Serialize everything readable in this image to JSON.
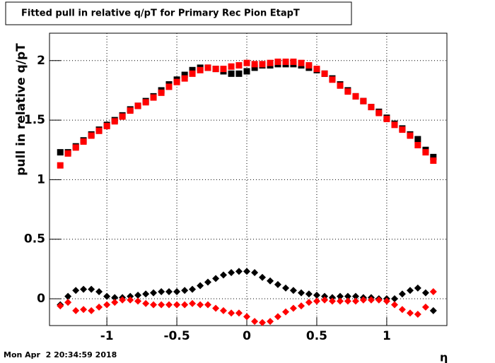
{
  "chart_data": {
    "type": "scatter",
    "title": "Fitted pull in relative q/pT for Primary Rec Pion EtapT",
    "y_label": "pull in relative q/pT",
    "x_label": "η",
    "timestamp": "Mon Apr  2 20:34:59 2018",
    "x": [
      -1.333,
      -1.278,
      -1.222,
      -1.167,
      -1.111,
      -1.056,
      -1,
      -0.944,
      -0.889,
      -0.833,
      -0.778,
      -0.722,
      -0.667,
      -0.611,
      -0.556,
      -0.5,
      -0.444,
      -0.389,
      -0.333,
      -0.278,
      -0.222,
      -0.167,
      -0.111,
      -0.056,
      0,
      0.056,
      0.111,
      0.167,
      0.222,
      0.278,
      0.333,
      0.389,
      0.444,
      0.5,
      0.556,
      0.611,
      0.667,
      0.722,
      0.778,
      0.833,
      0.889,
      0.944,
      1,
      1.056,
      1.111,
      1.167,
      1.222,
      1.278,
      1.333
    ],
    "series": [
      {
        "color": "#000000",
        "marker": "square",
        "values": [
          1.23,
          1.23,
          1.28,
          1.33,
          1.38,
          1.42,
          1.46,
          1.5,
          1.54,
          1.59,
          1.62,
          1.66,
          1.7,
          1.75,
          1.8,
          1.84,
          1.88,
          1.92,
          1.94,
          1.94,
          1.93,
          1.91,
          1.89,
          1.89,
          1.91,
          1.94,
          1.96,
          1.96,
          1.97,
          1.97,
          1.97,
          1.96,
          1.94,
          1.92,
          1.89,
          1.85,
          1.8,
          1.75,
          1.7,
          1.66,
          1.61,
          1.57,
          1.52,
          1.47,
          1.43,
          1.38,
          1.34,
          1.25,
          1.19
        ]
      },
      {
        "color": "#ff0000",
        "marker": "square",
        "values": [
          1.12,
          1.22,
          1.27,
          1.32,
          1.37,
          1.41,
          1.45,
          1.49,
          1.53,
          1.58,
          1.62,
          1.65,
          1.69,
          1.73,
          1.78,
          1.82,
          1.85,
          1.89,
          1.92,
          1.94,
          1.93,
          1.93,
          1.95,
          1.96,
          1.98,
          1.97,
          1.97,
          1.98,
          1.99,
          1.99,
          1.99,
          1.98,
          1.96,
          1.93,
          1.89,
          1.84,
          1.79,
          1.74,
          1.7,
          1.66,
          1.61,
          1.56,
          1.51,
          1.46,
          1.42,
          1.37,
          1.29,
          1.23,
          1.16
        ]
      },
      {
        "color": "#000000",
        "marker": "diamond",
        "values": [
          -0.05,
          0.02,
          0.07,
          0.08,
          0.08,
          0.06,
          0.02,
          0.01,
          0.01,
          0.02,
          0.03,
          0.04,
          0.05,
          0.06,
          0.06,
          0.06,
          0.07,
          0.08,
          0.11,
          0.14,
          0.17,
          0.2,
          0.22,
          0.23,
          0.23,
          0.22,
          0.18,
          0.15,
          0.12,
          0.09,
          0.07,
          0.05,
          0.04,
          0.03,
          0.02,
          0.01,
          0.02,
          0.02,
          0.02,
          0.01,
          0.01,
          0,
          0,
          0,
          0.04,
          0.07,
          0.09,
          0.05,
          -0.1
        ]
      },
      {
        "color": "#ff0000",
        "marker": "diamond",
        "values": [
          -0.06,
          -0.03,
          -0.1,
          -0.09,
          -0.1,
          -0.07,
          -0.05,
          -0.03,
          -0.01,
          -0.01,
          -0.02,
          -0.04,
          -0.05,
          -0.05,
          -0.05,
          -0.05,
          -0.05,
          -0.04,
          -0.05,
          -0.05,
          -0.08,
          -0.1,
          -0.12,
          -0.12,
          -0.15,
          -0.19,
          -0.2,
          -0.19,
          -0.15,
          -0.11,
          -0.08,
          -0.06,
          -0.03,
          -0.02,
          -0.01,
          -0.02,
          -0.02,
          -0.02,
          -0.02,
          -0.01,
          -0.01,
          -0.01,
          -0.02,
          -0.05,
          -0.09,
          -0.12,
          -0.13,
          -0.07,
          0.06
        ]
      }
    ],
    "xlim": [
      -1.41,
      1.43
    ],
    "ylim": [
      -0.225,
      2.23
    ],
    "xticks": [
      -1,
      -0.5,
      0,
      0.5,
      1
    ],
    "yticks": [
      0,
      0.5,
      1,
      1.5,
      2
    ],
    "grid": true
  }
}
